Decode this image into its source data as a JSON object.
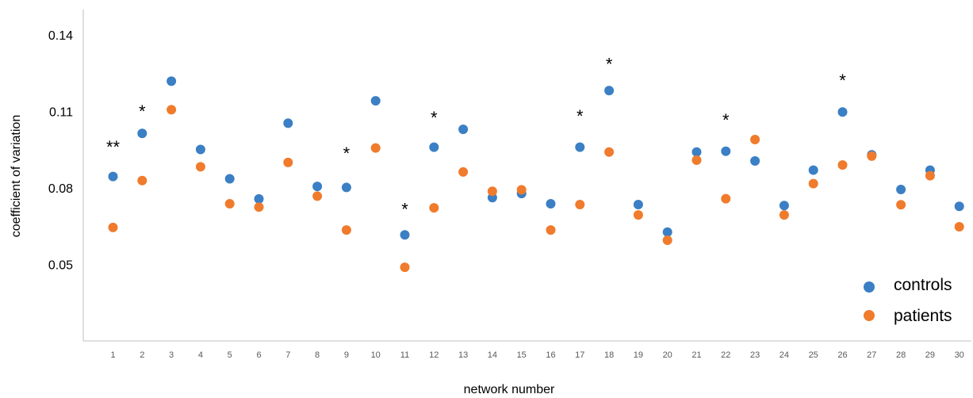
{
  "chart_data": {
    "type": "scatter",
    "xlabel": "network number",
    "ylabel": "coefficient of variation",
    "x": [
      1,
      2,
      3,
      4,
      5,
      6,
      7,
      8,
      9,
      10,
      11,
      12,
      13,
      14,
      15,
      16,
      17,
      18,
      19,
      20,
      21,
      22,
      23,
      24,
      25,
      26,
      27,
      28,
      29,
      30
    ],
    "yticks": [
      {
        "value": 0.05,
        "label": "0.05"
      },
      {
        "value": 0.08,
        "label": "0.08"
      },
      {
        "value": 0.11,
        "label": "0.11"
      },
      {
        "value": 0.14,
        "label": "0.14"
      }
    ],
    "ylim": [
      0.02,
      0.15
    ],
    "grid": false,
    "legend": "bottom-right",
    "series": [
      {
        "name": "controls",
        "color": "#3B7FC4",
        "values": [
          0.0845,
          0.1014,
          0.1219,
          0.0951,
          0.0836,
          0.0757,
          0.1054,
          0.0806,
          0.0802,
          0.1142,
          0.0616,
          0.096,
          0.103,
          0.0762,
          0.0778,
          0.0738,
          0.096,
          0.1182,
          0.0735,
          0.0627,
          0.0941,
          0.0944,
          0.0906,
          0.0731,
          0.087,
          0.1098,
          0.093,
          0.0794,
          0.087,
          0.0728
        ]
      },
      {
        "name": "patients",
        "color": "#F07B2C",
        "values": [
          0.0645,
          0.0829,
          0.1107,
          0.0883,
          0.0738,
          0.0725,
          0.09,
          0.0768,
          0.0635,
          0.0957,
          0.0489,
          0.0722,
          0.0863,
          0.0787,
          0.0793,
          0.0635,
          0.0735,
          0.0941,
          0.0694,
          0.0595,
          0.0909,
          0.0758,
          0.099,
          0.0694,
          0.0817,
          0.089,
          0.0925,
          0.0734,
          0.0848,
          0.0648
        ]
      }
    ],
    "annotations": [
      {
        "x": 1,
        "y": 0.0974,
        "text": "**"
      },
      {
        "x": 2,
        "y": 0.1115,
        "text": "*"
      },
      {
        "x": 9,
        "y": 0.095,
        "text": "*"
      },
      {
        "x": 11,
        "y": 0.073,
        "text": "*"
      },
      {
        "x": 12,
        "y": 0.109,
        "text": "*"
      },
      {
        "x": 17,
        "y": 0.1095,
        "text": "*"
      },
      {
        "x": 18,
        "y": 0.13,
        "text": "*"
      },
      {
        "x": 22,
        "y": 0.108,
        "text": "*"
      },
      {
        "x": 26,
        "y": 0.1235,
        "text": "*"
      }
    ]
  }
}
